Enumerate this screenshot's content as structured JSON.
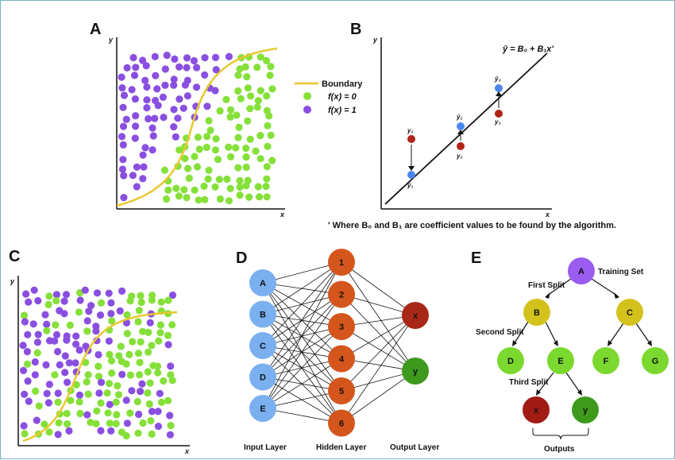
{
  "panels": {
    "a": {
      "letter": "A",
      "x_axis": "x",
      "y_axis": "y",
      "legend": {
        "boundary": "Boundary",
        "class0": "f(x) = 0",
        "class1": "f(x) = 1"
      }
    },
    "b": {
      "letter": "B",
      "x_axis": "x",
      "y_axis": "y",
      "equation": "ŷ = B₀ + B₁x'",
      "note": "' Where B₀ and B₁ are coefficient values to be found by the algorithm.",
      "actual": [
        "y₁",
        "y₂",
        "y₃"
      ],
      "predicted": [
        "ŷ₁",
        "ŷ₂",
        "ŷ₃"
      ]
    },
    "c": {
      "letter": "C",
      "x_axis": "x",
      "y_axis": "y"
    },
    "d": {
      "letter": "D",
      "input_nodes": [
        "A",
        "B",
        "C",
        "D",
        "E"
      ],
      "hidden_nodes": [
        "1",
        "2",
        "3",
        "4",
        "5",
        "6"
      ],
      "output_nodes": [
        "x",
        "y"
      ],
      "input_label": "Input Layer",
      "hidden_label": "Hidden Layer",
      "output_label": "Output Layer"
    },
    "e": {
      "letter": "E",
      "root": "A",
      "root_label": "Training Set",
      "level1": [
        "B",
        "C"
      ],
      "split1": "First Split",
      "level2": [
        "D",
        "E",
        "F",
        "G"
      ],
      "split2": "Second Split",
      "split3": "Third Split",
      "level3": [
        "x",
        "y"
      ],
      "outputs_label": "Outputs"
    }
  },
  "colors": {
    "purple": "#8a4fe0",
    "green": "#86e03a",
    "boundary": "#e8c830",
    "blue": "#4a86f0",
    "red": "#b02418",
    "input_node": "#7ab0f0",
    "hidden_node": "#d4561c",
    "output_x": "#a82818",
    "output_y": "#3e9a1c",
    "tree_root": "#9b5cf0",
    "tree_split": "#d4c21c",
    "tree_leaf": "#7ad82e",
    "tree_out_x": "#a01c14",
    "tree_out_y": "#3e9a1c"
  }
}
